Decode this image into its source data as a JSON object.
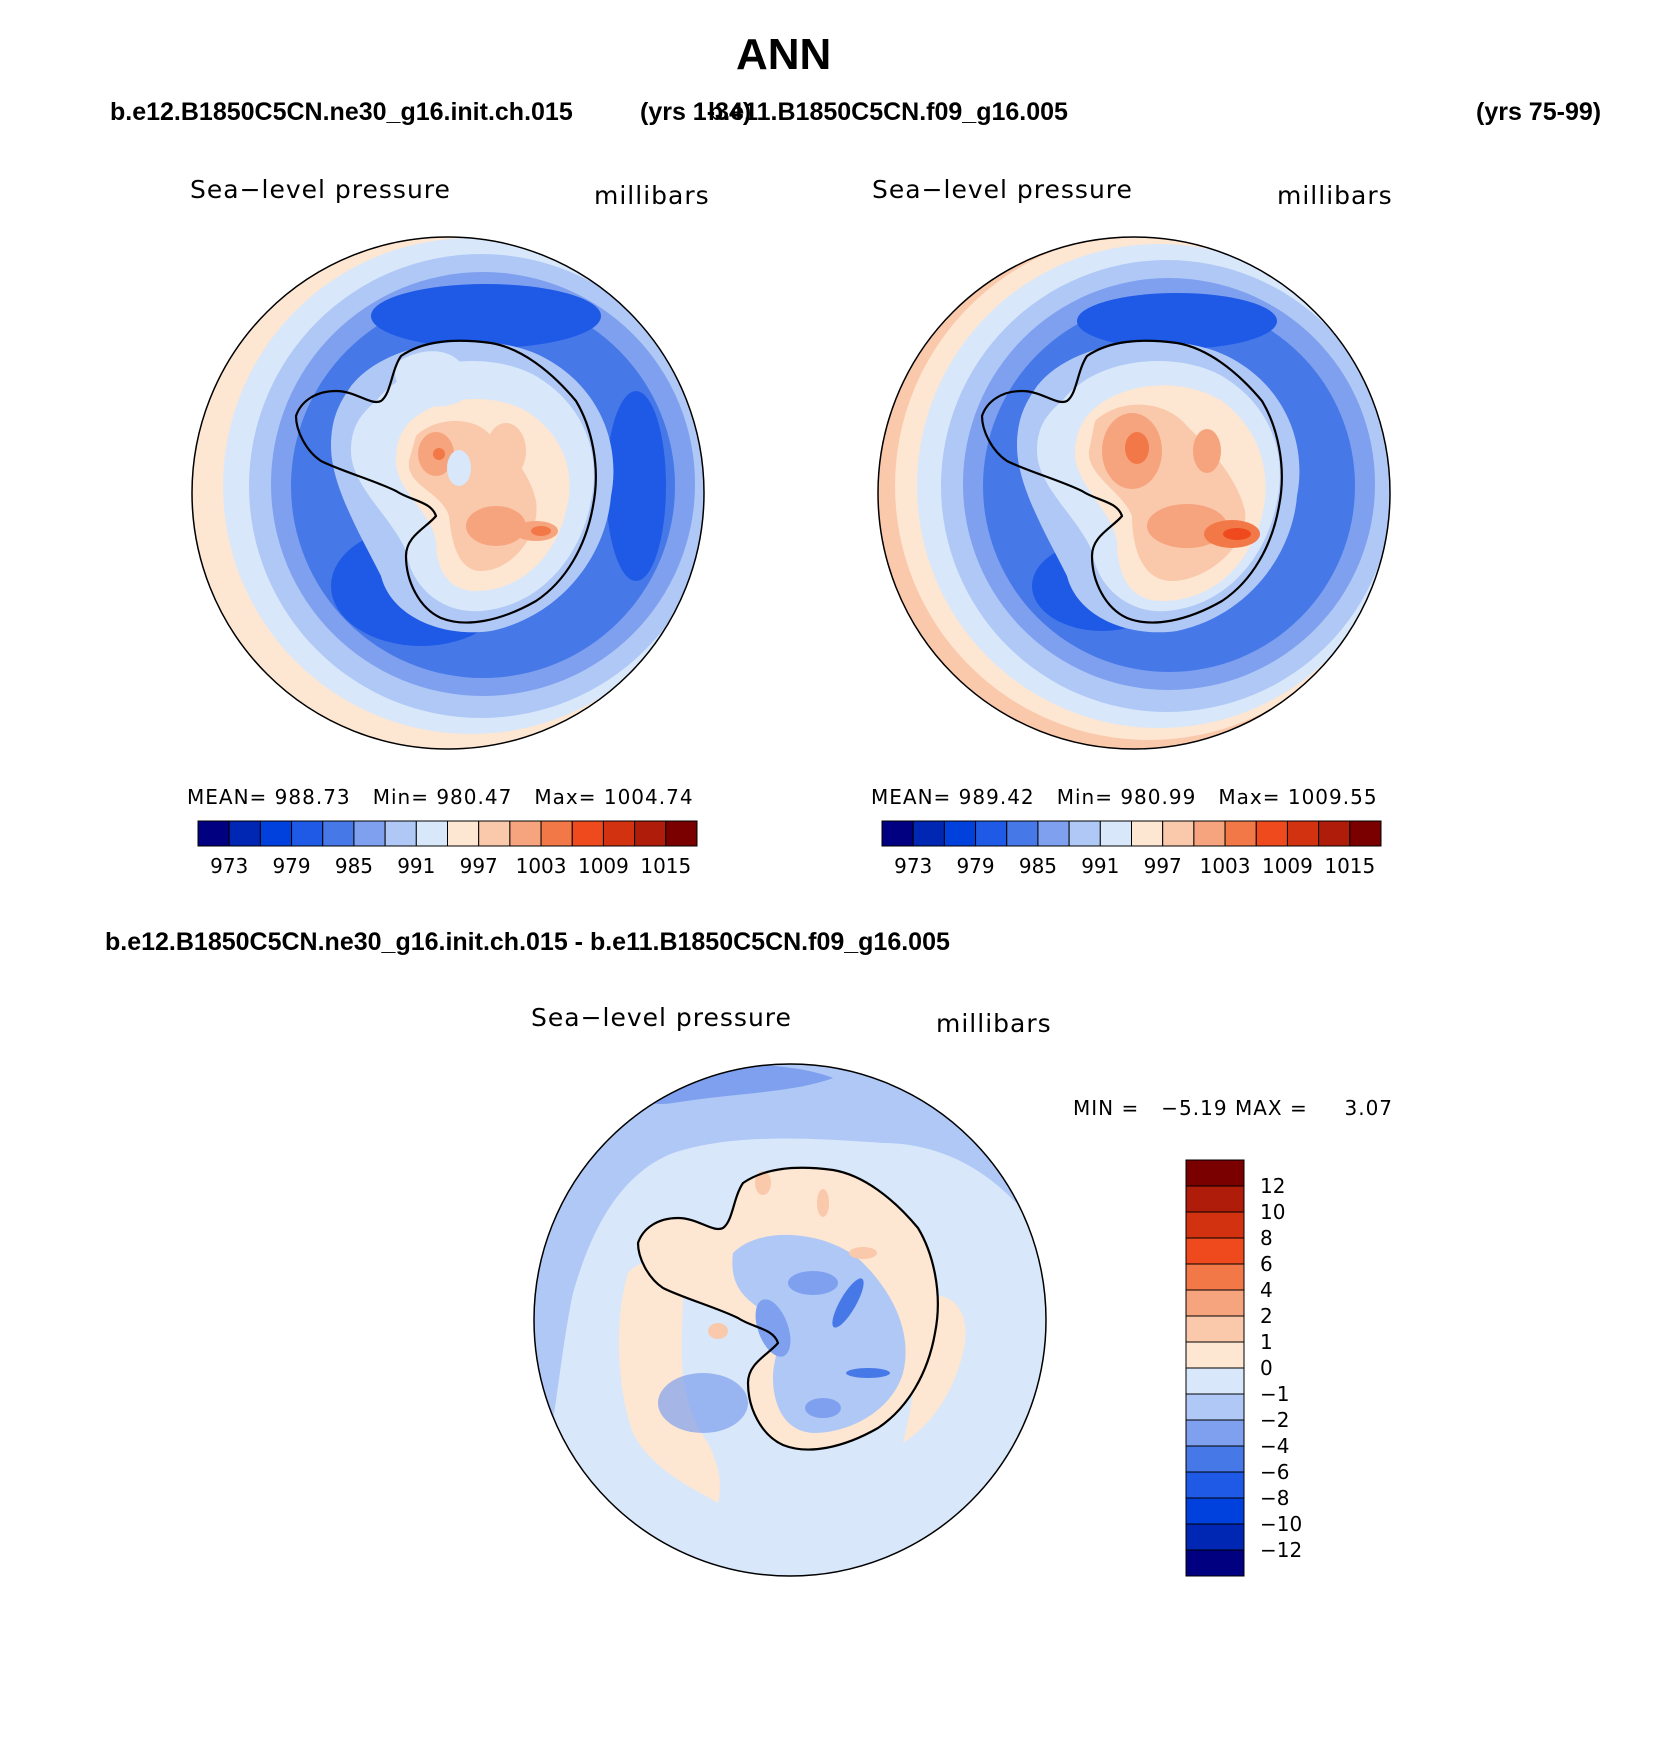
{
  "title": "ANN",
  "top_left": {
    "case_name": "b.e12.B1850C5CN.ne30_g16.init.ch.015",
    "years": "(yrs 1-34)",
    "variable": "Sea−level pressure",
    "units": "millibars",
    "stats": {
      "mean_label": "MEAN=",
      "mean": "988.73",
      "min_label": "Min=",
      "min": "980.47",
      "max_label": "Max=",
      "max": "1004.74"
    }
  },
  "top_right": {
    "case_name": "b.e11.B1850C5CN.f09_g16.005",
    "years": "(yrs 75-99)",
    "variable": "Sea−level pressure",
    "units": "millibars",
    "stats": {
      "mean_label": "MEAN=",
      "mean": "989.42",
      "min_label": "Min=",
      "min": "980.99",
      "max_label": "Max=",
      "max": "1009.55"
    }
  },
  "diff": {
    "case_name": "b.e12.B1850C5CN.ne30_g16.init.ch.015 - b.e11.B1850C5CN.f09_g16.005",
    "variable": "Sea−level pressure",
    "units": "millibars",
    "minmax_text": "MIN =   −5.19 MAX =     3.07"
  },
  "abs_colorbar": {
    "colors": [
      "#000080",
      "#0026b4",
      "#0040dc",
      "#1e5ae6",
      "#4678e8",
      "#7ea0ee",
      "#b0c8f6",
      "#d8e8fa",
      "#fde6d2",
      "#fac8aa",
      "#f6a47e",
      "#f27848",
      "#ee4a1e",
      "#d23210",
      "#b01c0a",
      "#7a0000"
    ],
    "labels": [
      "973",
      "979",
      "985",
      "991",
      "997",
      "1003",
      "1009",
      "1015"
    ]
  },
  "diff_colorbar": {
    "colors": [
      "#7a0000",
      "#b01c0a",
      "#d23210",
      "#ee4a1e",
      "#f27848",
      "#f6a47e",
      "#fac8aa",
      "#fde6d2",
      "#d8e8fa",
      "#b0c8f6",
      "#7ea0ee",
      "#4678e8",
      "#1e5ae6",
      "#0040dc",
      "#0026b4",
      "#000080"
    ],
    "labels": [
      "12",
      "10",
      "8",
      "6",
      "4",
      "2",
      "1",
      "0",
      "−1",
      "−2",
      "−4",
      "−6",
      "−8",
      "−10",
      "−12"
    ]
  }
}
